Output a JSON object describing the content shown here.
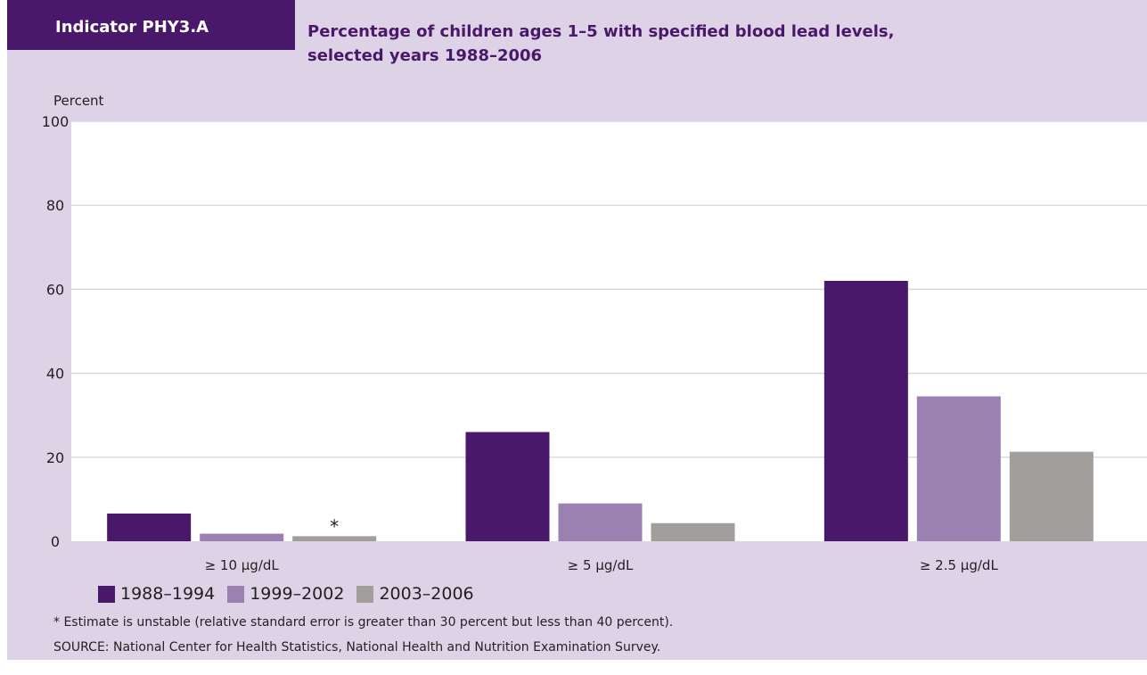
{
  "header": {
    "indicator": "Indicator PHY3.A",
    "title": "Percentage of children ages 1–5 with specified blood lead levels, selected years 1988–2006"
  },
  "chart_data": {
    "type": "bar",
    "title": "Percentage of children ages 1–5 with specified blood lead levels, selected years 1988–2006",
    "ylabel": "Percent",
    "xlabel": "",
    "ylim": [
      0,
      100
    ],
    "yticks": [
      "0",
      "20",
      "40",
      "60",
      "80",
      "100"
    ],
    "categories": [
      "≥ 10 μg/dL",
      "≥ 5 μg/dL",
      "≥ 2.5 μg/dL"
    ],
    "series": [
      {
        "name": "1988–1994",
        "color": "#4a186a",
        "values": [
          6.6,
          26.0,
          62.0
        ]
      },
      {
        "name": "1999–2002",
        "color": "#9b80b2",
        "values": [
          1.8,
          9.0,
          34.5
        ]
      },
      {
        "name": "2003–2006",
        "color": "#a29e9b",
        "values": [
          1.2,
          4.3,
          21.3
        ]
      }
    ],
    "annotations": [
      {
        "category": "≥ 10 μg/dL",
        "series": "2003–2006",
        "text": "*"
      }
    ],
    "grid": true,
    "legend_position": "bottom-left"
  },
  "footnote": "* Estimate is unstable (relative standard error is greater than 30 percent but less than 40 percent).",
  "source": "SOURCE: National Center for Health Statistics, National Health and Nutrition Examination Survey."
}
